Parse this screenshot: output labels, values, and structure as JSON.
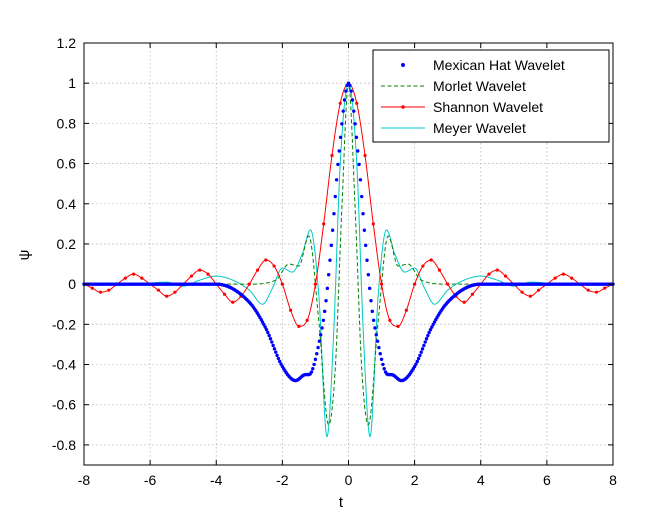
{
  "chart_data": {
    "type": "line",
    "xlabel": "t",
    "ylabel": "ψ",
    "xlim": [
      -8,
      8
    ],
    "ylim": [
      -0.9,
      1.2
    ],
    "grid": true,
    "legend_position": "top-right",
    "x_ticks": [
      "-8",
      "-6",
      "-4",
      "-2",
      "0",
      "2",
      "4",
      "6",
      "8"
    ],
    "y_ticks": [
      "-0.8",
      "-0.6",
      "-0.4",
      "-0.2",
      "0",
      "0.2",
      "0.4",
      "0.6",
      "0.8",
      "1",
      "1.2"
    ],
    "colors": {
      "mexican_hat": "#0000ff",
      "morlet": "#008000",
      "shannon": "#ff0000",
      "meyer": "#00c8c8"
    },
    "series": [
      {
        "name": "Mexican Hat Wavelet",
        "style": "dots",
        "x": [
          -8,
          -4,
          -3,
          -2.5,
          -2,
          -1.6,
          -1.3,
          -1.2,
          -1.1,
          -0.9,
          -0.7,
          -0.5,
          -0.3,
          0,
          0.3,
          0.5,
          0.7,
          0.9,
          1.1,
          1.2,
          1.3,
          1.6,
          2,
          2.5,
          3,
          4,
          8
        ],
        "y": [
          0,
          0,
          -0.09,
          -0.22,
          -0.41,
          -0.48,
          -0.45,
          -0.45,
          -0.43,
          -0.3,
          -0.11,
          0.23,
          0.63,
          1.0,
          0.63,
          0.23,
          -0.11,
          -0.3,
          -0.43,
          -0.45,
          -0.45,
          -0.48,
          -0.41,
          -0.22,
          -0.09,
          0,
          0
        ]
      },
      {
        "name": "Morlet Wavelet",
        "style": "dashed",
        "x": [
          -8,
          -3,
          -2.2,
          -1.8,
          -1.5,
          -1.2,
          -0.9,
          -0.6,
          -0.4,
          -0.2,
          0,
          0.2,
          0.4,
          0.6,
          0.9,
          1.2,
          1.5,
          1.8,
          2.2,
          3,
          8
        ],
        "y": [
          0,
          0,
          0.02,
          0.1,
          0.09,
          0.24,
          -0.18,
          -0.7,
          -0.42,
          0.38,
          1.0,
          0.38,
          -0.42,
          -0.7,
          -0.18,
          0.24,
          0.09,
          0.1,
          0.02,
          0,
          0
        ]
      },
      {
        "name": "Shannon Wavelet",
        "style": "line-markers",
        "x": [
          -8,
          -7.75,
          -7.5,
          -7.25,
          -7,
          -6.75,
          -6.5,
          -6.25,
          -6,
          -5.75,
          -5.5,
          -5.25,
          -5,
          -4.75,
          -4.5,
          -4.25,
          -4,
          -3.75,
          -3.5,
          -3.25,
          -3,
          -2.75,
          -2.5,
          -2.25,
          -2,
          -1.75,
          -1.5,
          -1.25,
          -1,
          -0.75,
          -0.5,
          -0.25,
          0,
          0.25,
          0.5,
          0.75,
          1,
          1.25,
          1.5,
          1.75,
          2,
          2.25,
          2.5,
          2.75,
          3,
          3.25,
          3.5,
          3.75,
          4,
          4.25,
          4.5,
          4.75,
          5,
          5.25,
          5.5,
          5.75,
          6,
          6.25,
          6.5,
          6.75,
          7,
          7.25,
          7.5,
          7.75,
          8
        ],
        "y": [
          0,
          -0.02,
          -0.04,
          -0.03,
          0,
          0.03,
          0.05,
          0.03,
          0,
          -0.03,
          -0.06,
          -0.04,
          0,
          0.04,
          0.07,
          0.05,
          0,
          -0.05,
          -0.09,
          -0.06,
          0,
          0.07,
          0.12,
          0.09,
          0,
          -0.13,
          -0.21,
          -0.18,
          0,
          0.3,
          0.64,
          0.9,
          1.0,
          0.9,
          0.64,
          0.3,
          0,
          -0.18,
          -0.21,
          -0.13,
          0,
          0.09,
          0.12,
          0.07,
          0,
          -0.06,
          -0.09,
          -0.05,
          0,
          0.05,
          0.07,
          0.04,
          0,
          -0.04,
          -0.06,
          -0.03,
          0,
          0.03,
          0.05,
          0.03,
          0,
          -0.03,
          -0.04,
          -0.02,
          0
        ]
      },
      {
        "name": "Meyer Wavelet",
        "style": "line",
        "x": [
          -8,
          -6.5,
          -5.5,
          -5,
          -4.5,
          -4,
          -3.5,
          -3,
          -2.6,
          -2.3,
          -2,
          -1.7,
          -1.4,
          -1.15,
          -0.9,
          -0.65,
          -0.45,
          -0.25,
          0,
          0.25,
          0.45,
          0.65,
          0.9,
          1.15,
          1.4,
          1.7,
          2,
          2.3,
          2.6,
          3,
          3.5,
          4,
          4.5,
          5,
          5.5,
          6.5,
          8
        ],
        "y": [
          0,
          0,
          0.01,
          -0.01,
          0.02,
          0.04,
          0.02,
          -0.03,
          -0.1,
          -0.02,
          0.08,
          0.06,
          0.15,
          0.27,
          -0.05,
          -0.76,
          -0.25,
          0.6,
          1.0,
          0.6,
          -0.25,
          -0.76,
          -0.05,
          0.27,
          0.15,
          0.06,
          0.08,
          -0.02,
          -0.1,
          -0.03,
          0.02,
          0.04,
          0.02,
          -0.01,
          0.01,
          0,
          0
        ]
      }
    ]
  }
}
